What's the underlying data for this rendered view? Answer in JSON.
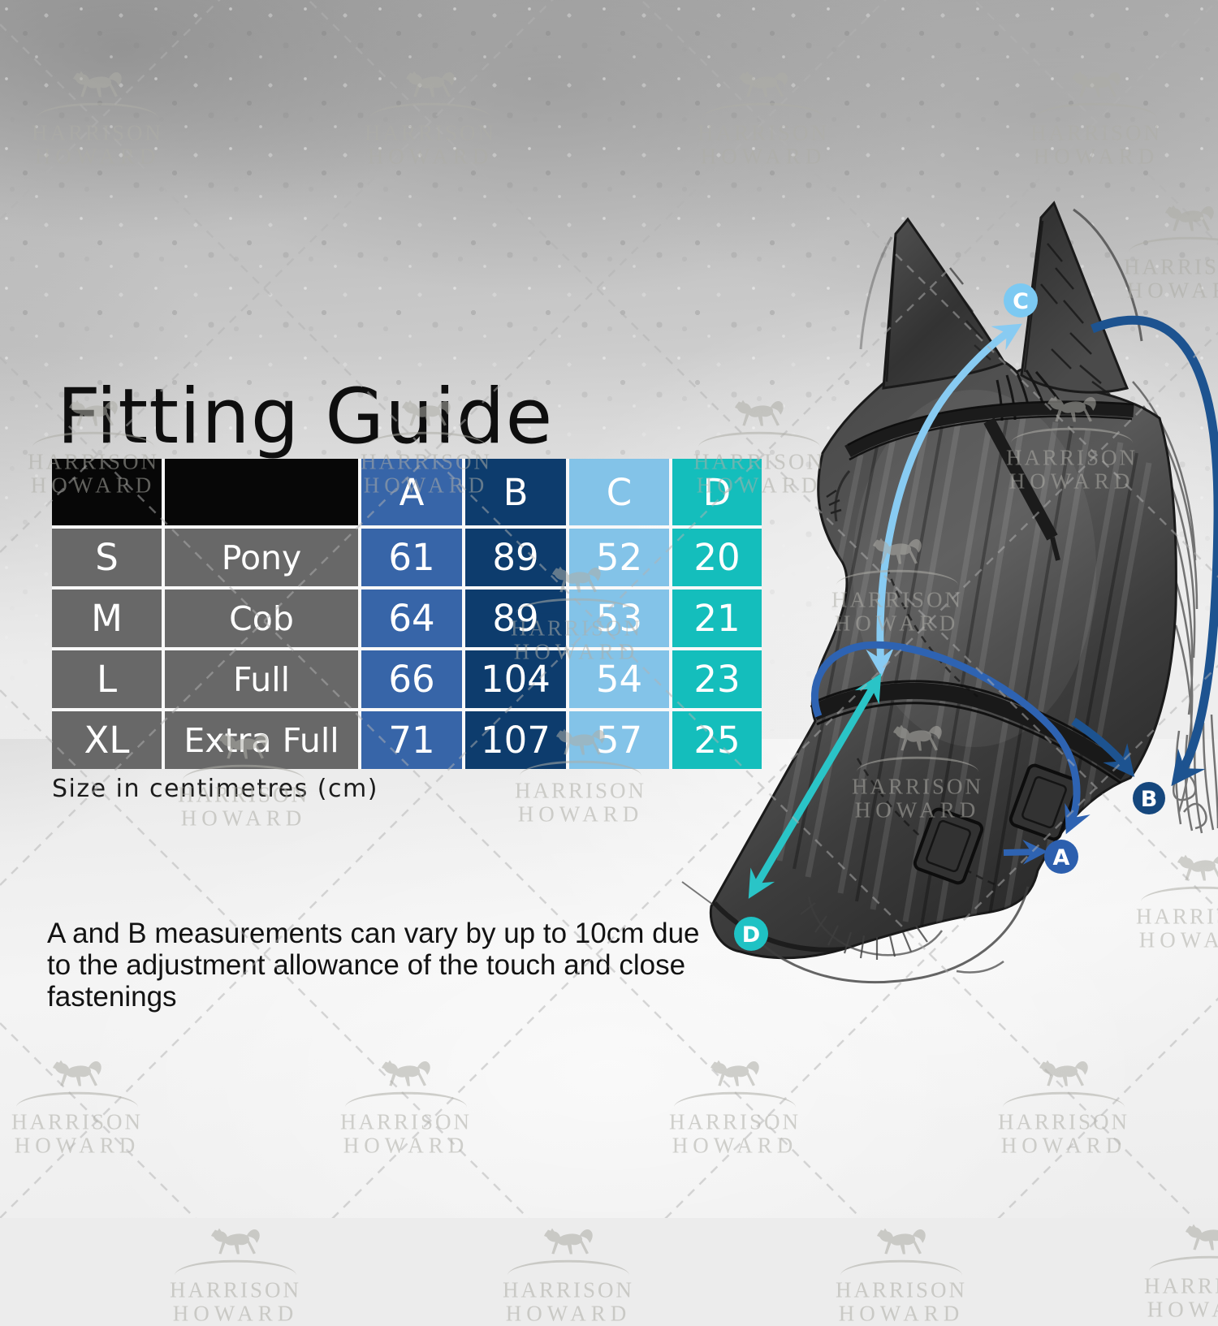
{
  "page": {
    "title": "Fitting Guide",
    "size_unit_note": "Size in centimetres (cm)",
    "footnote": "A and B measurements can vary by up to 10cm due to the adjustment allowance of the touch and close fastenings"
  },
  "brand_watermark": {
    "line1": "HARRISON",
    "line2": "HOWARD",
    "icon": "galloping-horse-logo",
    "color": "#aeada7"
  },
  "table": {
    "header_blank_bg": "#070707",
    "row_label_bg": "#686868",
    "columns": [
      {
        "label": "A",
        "color": "#3765a8"
      },
      {
        "label": "B",
        "color": "#0d3c6d"
      },
      {
        "label": "C",
        "color": "#83c3e8"
      },
      {
        "label": "D",
        "color": "#14bebc"
      }
    ],
    "rows": [
      {
        "size": "S",
        "name": "Pony",
        "A": 61,
        "B": 89,
        "C": 52,
        "D": 20
      },
      {
        "size": "M",
        "name": "Cob",
        "A": 64,
        "B": 89,
        "C": 53,
        "D": 21
      },
      {
        "size": "L",
        "name": "Full",
        "A": 66,
        "B": 104,
        "C": 54,
        "D": 23
      },
      {
        "size": "XL",
        "name": "Extra Full",
        "A": 71,
        "B": 107,
        "C": 57,
        "D": 25
      }
    ]
  },
  "diagram": {
    "subject": "horse head wearing fly mask with measurement arrows",
    "markers": [
      {
        "letter": "A",
        "color": "#2c5fae"
      },
      {
        "letter": "B",
        "color": "#15477d"
      },
      {
        "letter": "C",
        "color": "#7cc9f2"
      },
      {
        "letter": "D",
        "color": "#1fc2c4"
      }
    ]
  }
}
